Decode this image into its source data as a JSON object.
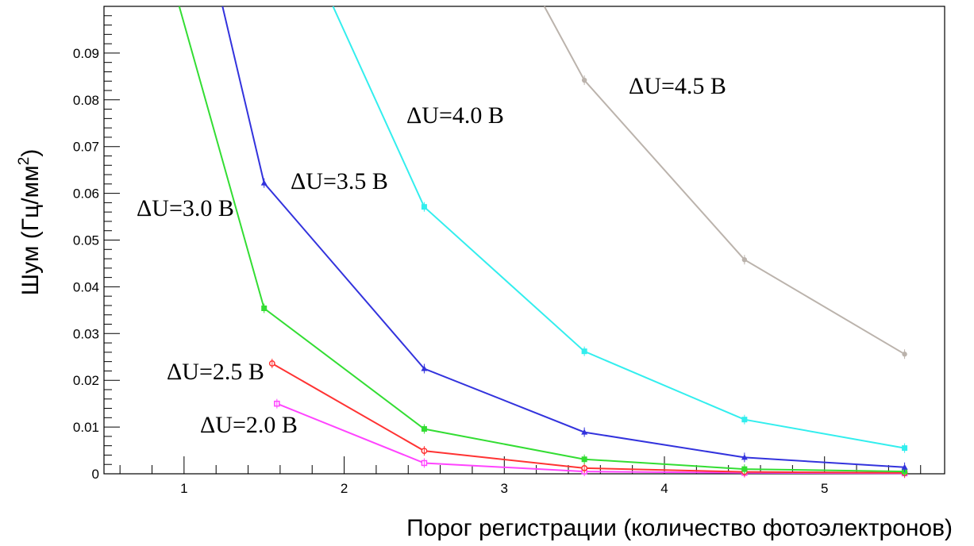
{
  "chart_data": {
    "type": "line",
    "xlabel": "Порог регистрации (количество фотоэлектронов)",
    "ylabel": "Шум (Гц/мм²)",
    "ylabel_base": "Шум (Гц/мм",
    "ylabel_sup": "2",
    "ylabel_end": ")",
    "xlim": [
      0.5,
      5.75
    ],
    "ylim": [
      0,
      0.1
    ],
    "x_ticks": [
      "1",
      "2",
      "3",
      "4",
      "5"
    ],
    "y_ticks": [
      "0",
      "0.01",
      "0.02",
      "0.03",
      "0.04",
      "0.05",
      "0.06",
      "0.07",
      "0.08",
      "0.09"
    ],
    "grid": false,
    "series": [
      {
        "name": "ΔU=2.0 В",
        "color": "#ff44ff",
        "marker": "open-square",
        "x": [
          1.58,
          2.5,
          3.5,
          4.5,
          5.5
        ],
        "y": [
          0.015,
          0.0023,
          0.0005,
          0.0002,
          0.0001
        ]
      },
      {
        "name": "ΔU=2.5 В",
        "color": "#ff3333",
        "marker": "open-circle",
        "x": [
          1.55,
          2.5,
          3.5,
          4.5,
          5.5
        ],
        "y": [
          0.0236,
          0.0049,
          0.0012,
          0.0004,
          0.0002
        ]
      },
      {
        "name": "ΔU=3.0 В",
        "color": "#33dd33",
        "marker": "filled-square",
        "x": [
          0.97,
          1.5,
          2.5,
          3.5,
          4.5,
          5.5
        ],
        "y": [
          0.1,
          0.0354,
          0.0096,
          0.0031,
          0.001,
          0.0005
        ]
      },
      {
        "name": "ΔU=3.5 В",
        "color": "#3333dd",
        "marker": "filled-triangle",
        "x": [
          1.24,
          1.5,
          2.5,
          3.5,
          4.5,
          5.5
        ],
        "y": [
          0.1,
          0.0622,
          0.0225,
          0.0089,
          0.0035,
          0.0014
        ]
      },
      {
        "name": "ΔU=4.0 В",
        "color": "#33eeee",
        "marker": "filled-square",
        "x": [
          1.93,
          2.5,
          3.5,
          4.5,
          5.5
        ],
        "y": [
          0.1,
          0.0571,
          0.0262,
          0.0116,
          0.0055
        ]
      },
      {
        "name": "ΔU=4.5 В",
        "color": "#bbb3ac",
        "marker": "filled-circle",
        "x": [
          3.25,
          3.5,
          4.5,
          5.5
        ],
        "y": [
          0.1,
          0.0842,
          0.0458,
          0.0256
        ]
      }
    ]
  }
}
